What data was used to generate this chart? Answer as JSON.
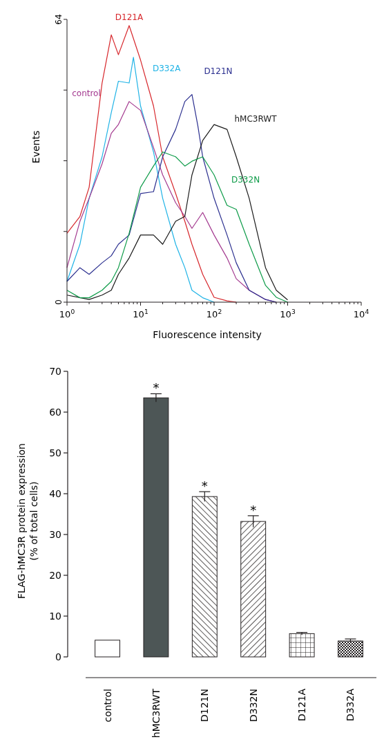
{
  "chart_data": [
    {
      "type": "line",
      "xlabel": "Fluorescence intensity",
      "ylabel": "Events",
      "log": "x",
      "legend": false,
      "grid": false,
      "marker": "none",
      "xlim": [
        1,
        10000
      ],
      "ylim": [
        0,
        64
      ],
      "xticks": [
        {
          "value": 1,
          "label": "10$^{0}$"
        },
        {
          "value": 2,
          "label": null
        },
        {
          "value": 3,
          "label": null
        },
        {
          "value": 4,
          "label": null
        },
        {
          "value": 5,
          "label": null
        },
        {
          "value": 6,
          "label": null
        },
        {
          "value": 7,
          "label": null
        },
        {
          "value": 8,
          "label": null
        },
        {
          "value": 9,
          "label": null
        },
        {
          "value": 10,
          "label": "10$^{1}$"
        },
        {
          "value": 20,
          "label": null
        },
        {
          "value": 30,
          "label": null
        },
        {
          "value": 40,
          "label": null
        },
        {
          "value": 50,
          "label": null
        },
        {
          "value": 60,
          "label": null
        },
        {
          "value": 70,
          "label": null
        },
        {
          "value": 80,
          "label": null
        },
        {
          "value": 90,
          "label": null
        },
        {
          "value": 100,
          "label": "10$^{2}$"
        },
        {
          "value": 200,
          "label": null
        },
        {
          "value": 300,
          "label": null
        },
        {
          "value": 400,
          "label": null
        },
        {
          "value": 500,
          "label": null
        },
        {
          "value": 600,
          "label": null
        },
        {
          "value": 700,
          "label": null
        },
        {
          "value": 800,
          "label": null
        },
        {
          "value": 900,
          "label": null
        },
        {
          "value": 1000,
          "label": "10$^{3}$"
        },
        {
          "value": 2000,
          "label": null
        },
        {
          "value": 3000,
          "label": null
        },
        {
          "value": 4000,
          "label": null
        },
        {
          "value": 5000,
          "label": null
        },
        {
          "value": 6000,
          "label": null
        },
        {
          "value": 7000,
          "label": null
        },
        {
          "value": 8000,
          "label": null
        },
        {
          "value": 9000,
          "label": null
        },
        {
          "value": 10000,
          "label": "10$^{4}$"
        }
      ],
      "yticks": [
        0,
        {
          "value": 16,
          "label": null
        },
        {
          "value": 32,
          "label": null
        },
        {
          "value": 48,
          "label": null
        },
        64
      ],
      "series": [
        {
          "name": "D121A",
          "color": "#d7262b",
          "x": [
            1,
            1.5,
            2,
            3,
            4,
            5,
            7,
            10,
            15,
            20,
            30,
            40,
            50,
            70,
            100,
            150,
            200
          ],
          "values": [
            15.6,
            19.4,
            26,
            49.6,
            60.5,
            56,
            62.6,
            54.8,
            44.4,
            32.9,
            24.6,
            18.3,
            13.1,
            6.3,
            1.1,
            0.3,
            0
          ]
        },
        {
          "name": "D332A",
          "color": "#1fb3e6",
          "x": [
            1,
            1.5,
            2,
            3,
            4,
            5,
            7,
            8,
            10,
            15,
            20,
            30,
            40,
            50,
            70,
            100
          ],
          "values": [
            4.7,
            13.1,
            23.5,
            32.9,
            42.9,
            50,
            49.6,
            55.4,
            44.4,
            34,
            23.5,
            13.1,
            7.8,
            2.7,
            1,
            0
          ]
        },
        {
          "name": "control",
          "color": "#a3398f",
          "x": [
            1,
            1.5,
            2,
            3,
            4,
            5,
            7,
            10,
            15,
            20,
            30,
            40,
            50,
            70,
            100,
            150,
            200,
            300,
            500,
            700
          ],
          "values": [
            7.8,
            18.3,
            23.5,
            31.3,
            38.2,
            40.2,
            45.4,
            43.4,
            35,
            28.8,
            22.5,
            19.4,
            16.7,
            20.3,
            15.2,
            10,
            5.3,
            2.7,
            0.6,
            0
          ]
        },
        {
          "name": "D121N",
          "color": "#2b2f8f",
          "x": [
            1,
            1.5,
            2,
            3,
            4,
            5,
            7,
            10,
            15,
            20,
            30,
            40,
            50,
            60,
            70,
            100,
            150,
            200,
            300,
            500,
            700
          ],
          "values": [
            4.7,
            7.8,
            6.3,
            8.9,
            10.5,
            13.1,
            15.2,
            24.6,
            25,
            32.9,
            39.1,
            45.4,
            47,
            40,
            32.9,
            23.5,
            15.2,
            8.9,
            2.7,
            0.6,
            0
          ]
        },
        {
          "name": "hMC3RWT",
          "color": "#1a1a1a",
          "x": [
            1,
            2,
            3,
            4,
            5,
            7,
            10,
            15,
            20,
            30,
            40,
            50,
            70,
            100,
            150,
            200,
            300,
            500,
            700,
            1000
          ],
          "values": [
            1.6,
            0.6,
            1.6,
            2.7,
            6.3,
            10,
            15.2,
            15.2,
            13.1,
            18.3,
            19.4,
            28.8,
            36.6,
            40.2,
            39.1,
            32.9,
            23.5,
            7.8,
            2.7,
            0.5
          ]
        },
        {
          "name": "D332N",
          "color": "#0d9b48",
          "x": [
            1,
            1.5,
            2,
            3,
            4,
            5,
            7,
            10,
            15,
            20,
            30,
            40,
            50,
            70,
            100,
            150,
            200,
            300,
            500,
            700,
            1000
          ],
          "values": [
            2.7,
            1,
            1,
            2.7,
            4.7,
            7.8,
            15.6,
            26,
            30.8,
            34,
            32.9,
            30.8,
            31.9,
            32.9,
            28.8,
            21.9,
            21,
            13.1,
            3.8,
            1.1,
            0
          ]
        }
      ]
    },
    {
      "type": "bar",
      "ylabel": "FLAG-hMC3R protein expression\n(% of total cells)",
      "categories": [
        "control",
        "hMC3RWT",
        "D121N",
        "D332N",
        "D121A",
        "D332A"
      ],
      "values": [
        4.1,
        63.5,
        39.3,
        33.2,
        5.7,
        3.9
      ],
      "errors": [
        null,
        1,
        1.2,
        1.4,
        0.3,
        0.5
      ],
      "colors": [
        "#ffffff",
        "#4d5656",
        "#ffffff",
        "#ffffff",
        "#ffffff",
        "#ffffff"
      ],
      "ylim": [
        0,
        70
      ],
      "yticks": [
        0,
        10,
        20,
        30,
        40,
        50,
        60,
        70
      ],
      "grid": false,
      "annotations": [
        {
          "text": "*",
          "x": "hMC3RWT",
          "y": 64.5
        },
        {
          "text": "*",
          "x": "D121N",
          "y": 40.5
        },
        {
          "text": "*",
          "x": "D332N",
          "y": 34.6
        }
      ]
    }
  ]
}
